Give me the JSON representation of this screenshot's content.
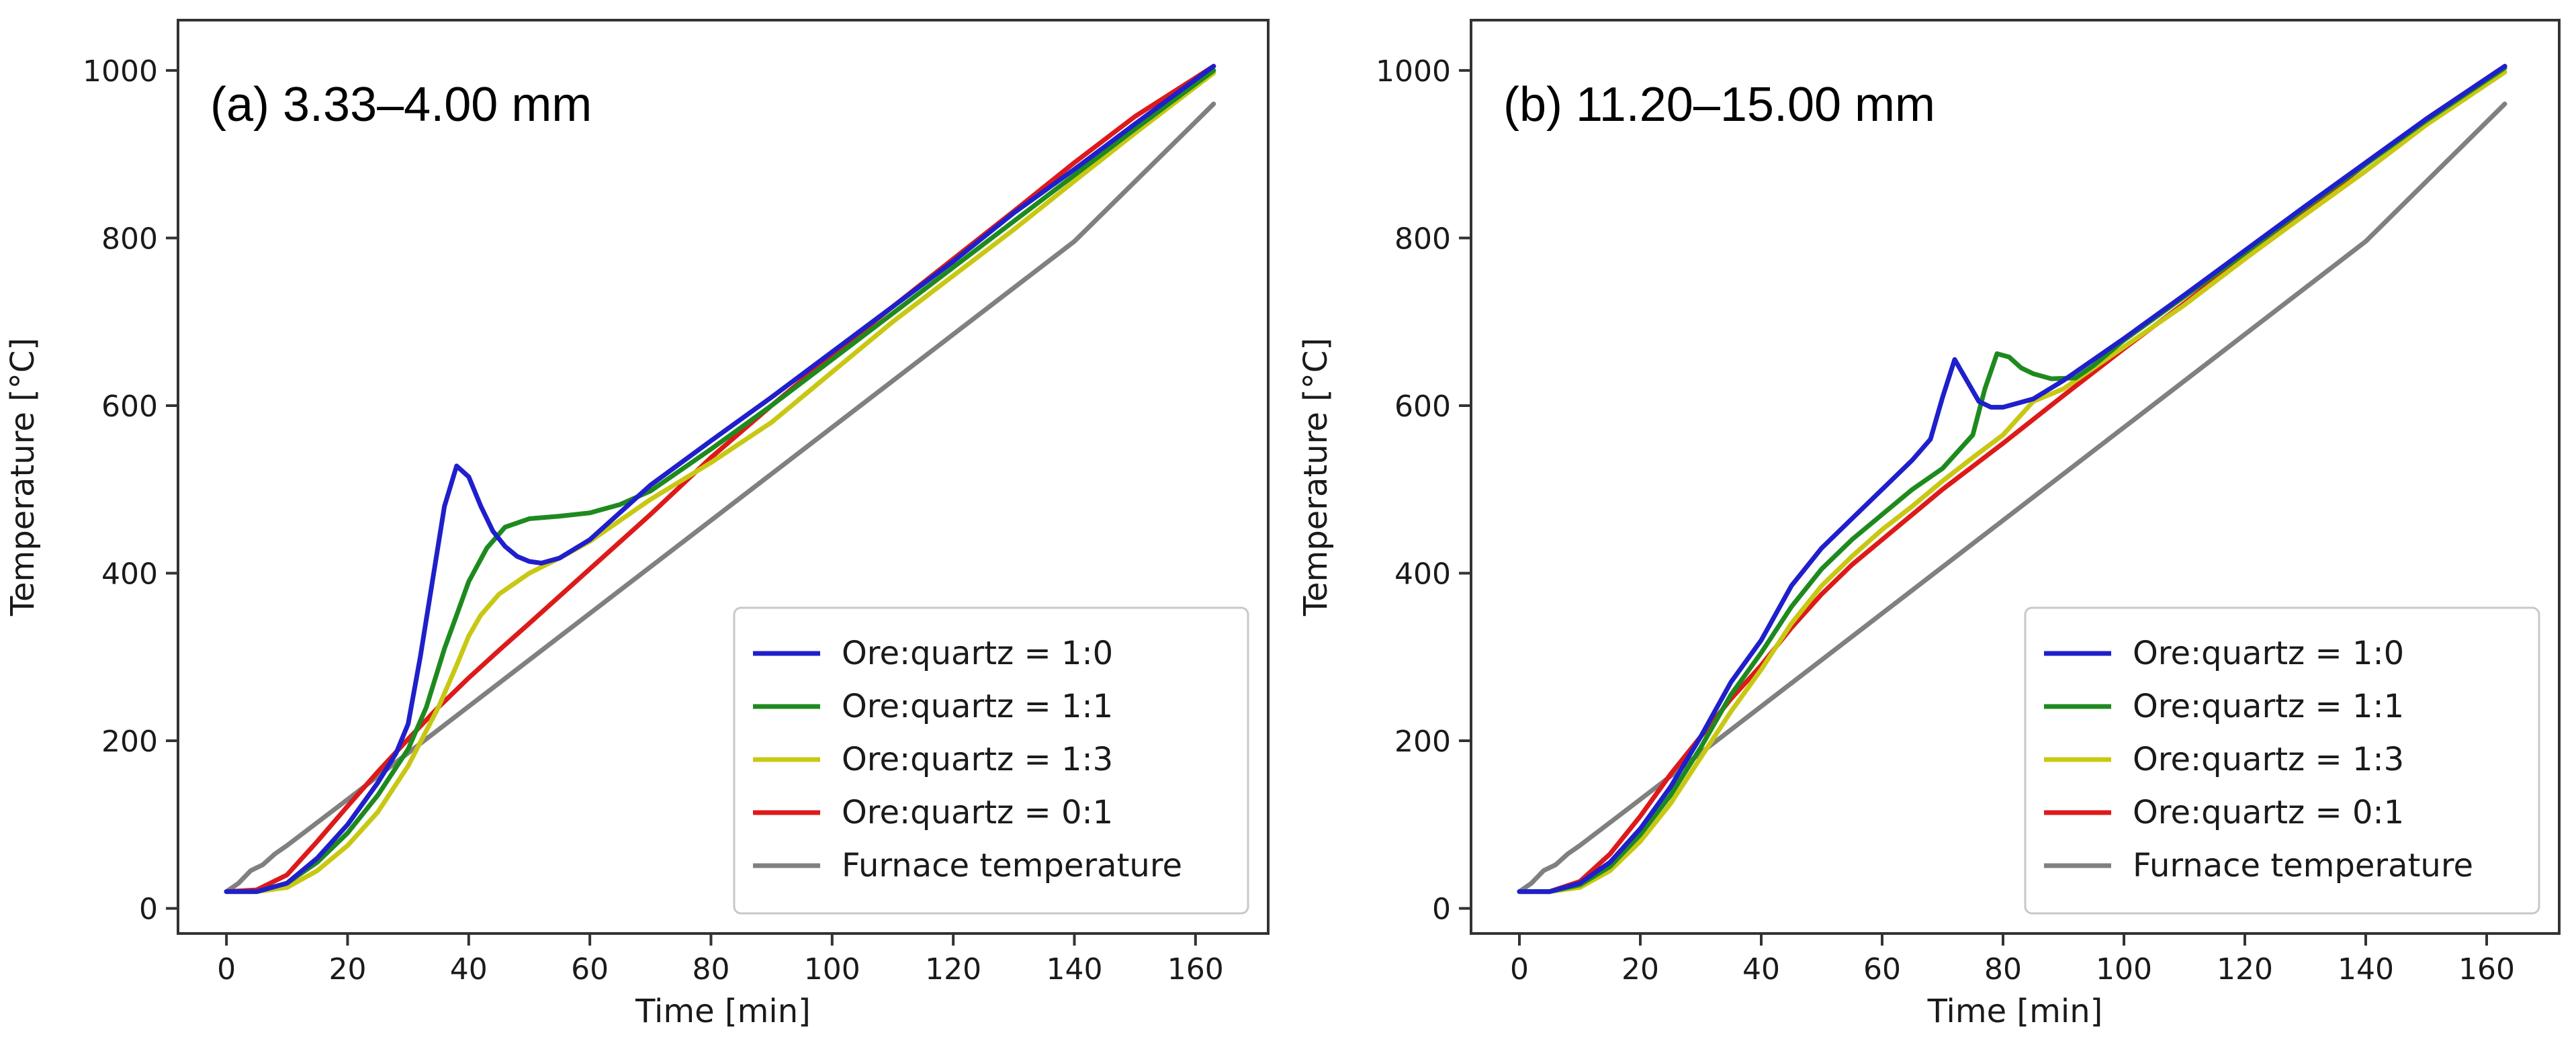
{
  "chart_data": [
    {
      "type": "line",
      "title": "(a) 3.33–4.00 mm",
      "xlabel": "Time [min]",
      "ylabel": "Temperature [°C]",
      "xlim": [
        -8,
        172
      ],
      "ylim": [
        -30,
        1060
      ],
      "xticks": [
        0,
        20,
        40,
        60,
        80,
        100,
        120,
        140,
        160
      ],
      "yticks": [
        0,
        200,
        400,
        600,
        800,
        1000
      ],
      "legend_position": "bottom-right",
      "series": [
        {
          "name": "Ore:quartz = 1:0",
          "color": "#1f1fcc",
          "x": [
            0,
            5,
            10,
            15,
            20,
            25,
            28,
            30,
            32,
            34,
            36,
            38,
            40,
            42,
            44,
            46,
            48,
            50,
            52,
            55,
            60,
            70,
            80,
            90,
            100,
            110,
            120,
            130,
            140,
            150,
            163
          ],
          "y": [
            20,
            20,
            30,
            60,
            100,
            150,
            185,
            220,
            300,
            390,
            480,
            528,
            515,
            480,
            450,
            432,
            420,
            414,
            412,
            418,
            440,
            505,
            558,
            610,
            664,
            718,
            772,
            830,
            882,
            936,
            1005
          ]
        },
        {
          "name": "Ore:quartz = 1:1",
          "color": "#1e8a1e",
          "x": [
            0,
            5,
            10,
            15,
            20,
            25,
            30,
            33,
            36,
            38,
            40,
            43,
            46,
            50,
            55,
            60,
            65,
            70,
            80,
            90,
            100,
            110,
            120,
            130,
            140,
            150,
            163
          ],
          "y": [
            20,
            20,
            30,
            55,
            90,
            135,
            190,
            240,
            310,
            350,
            390,
            430,
            455,
            465,
            468,
            472,
            482,
            498,
            548,
            600,
            655,
            710,
            765,
            820,
            875,
            930,
            1000
          ]
        },
        {
          "name": "Ore:quartz = 1:3",
          "color": "#c8c814",
          "x": [
            0,
            5,
            10,
            15,
            20,
            25,
            30,
            35,
            38,
            40,
            42,
            45,
            50,
            55,
            60,
            70,
            80,
            90,
            100,
            110,
            120,
            130,
            140,
            150,
            163
          ],
          "y": [
            20,
            20,
            25,
            45,
            75,
            115,
            170,
            240,
            290,
            325,
            350,
            375,
            400,
            418,
            438,
            488,
            532,
            580,
            640,
            700,
            755,
            810,
            868,
            925,
            997
          ]
        },
        {
          "name": "Ore:quartz = 0:1",
          "color": "#dd1a1a",
          "x": [
            0,
            5,
            10,
            15,
            20,
            25,
            30,
            35,
            40,
            45,
            50,
            60,
            70,
            80,
            90,
            100,
            110,
            120,
            130,
            140,
            150,
            163
          ],
          "y": [
            20,
            22,
            40,
            80,
            122,
            163,
            202,
            240,
            275,
            308,
            340,
            405,
            470,
            538,
            600,
            660,
            718,
            775,
            832,
            890,
            945,
            1005
          ]
        },
        {
          "name": "Furnace temperature",
          "color": "#808080",
          "x": [
            0,
            2,
            4,
            6,
            8,
            10,
            20,
            40,
            60,
            80,
            100,
            120,
            140,
            163
          ],
          "y": [
            20,
            30,
            45,
            52,
            65,
            75,
            130,
            241,
            352,
            463,
            574,
            685,
            796,
            960
          ]
        }
      ]
    },
    {
      "type": "line",
      "title": "(b) 11.20–15.00 mm",
      "xlabel": "Time [min]",
      "ylabel": "Temperature [°C]",
      "xlim": [
        -8,
        172
      ],
      "ylim": [
        -30,
        1060
      ],
      "xticks": [
        0,
        20,
        40,
        60,
        80,
        100,
        120,
        140,
        160
      ],
      "yticks": [
        0,
        200,
        400,
        600,
        800,
        1000
      ],
      "legend_position": "bottom-right",
      "series": [
        {
          "name": "Ore:quartz = 1:0",
          "color": "#1f1fcc",
          "x": [
            0,
            5,
            10,
            15,
            20,
            25,
            30,
            35,
            40,
            45,
            50,
            55,
            60,
            65,
            68,
            70,
            72,
            74,
            76,
            78,
            80,
            85,
            90,
            100,
            110,
            120,
            130,
            140,
            150,
            163
          ],
          "y": [
            20,
            20,
            30,
            55,
            95,
            145,
            205,
            270,
            320,
            385,
            430,
            465,
            500,
            535,
            560,
            610,
            655,
            630,
            605,
            598,
            598,
            608,
            630,
            680,
            732,
            785,
            838,
            890,
            942,
            1005
          ]
        },
        {
          "name": "Ore:quartz = 1:1",
          "color": "#1e8a1e",
          "x": [
            0,
            5,
            10,
            15,
            20,
            25,
            30,
            35,
            40,
            45,
            50,
            55,
            60,
            65,
            70,
            75,
            77,
            79,
            81,
            83,
            85,
            88,
            92,
            95,
            100,
            110,
            120,
            130,
            140,
            150,
            163
          ],
          "y": [
            20,
            20,
            28,
            50,
            88,
            135,
            192,
            255,
            305,
            360,
            405,
            440,
            470,
            500,
            525,
            565,
            620,
            662,
            658,
            645,
            638,
            632,
            633,
            648,
            678,
            730,
            782,
            836,
            888,
            940,
            1003
          ]
        },
        {
          "name": "Ore:quartz = 1:3",
          "color": "#c8c814",
          "x": [
            0,
            5,
            10,
            15,
            20,
            25,
            30,
            35,
            40,
            45,
            50,
            55,
            60,
            65,
            70,
            75,
            80,
            85,
            90,
            95,
            100,
            110,
            120,
            130,
            140,
            150,
            163
          ],
          "y": [
            20,
            20,
            25,
            45,
            80,
            125,
            180,
            235,
            285,
            340,
            385,
            420,
            452,
            480,
            510,
            538,
            565,
            605,
            620,
            645,
            670,
            720,
            775,
            828,
            880,
            935,
            998
          ]
        },
        {
          "name": "Ore:quartz = 0:1",
          "color": "#dd1a1a",
          "x": [
            0,
            5,
            10,
            15,
            20,
            25,
            30,
            35,
            40,
            45,
            50,
            55,
            60,
            70,
            80,
            90,
            100,
            110,
            120,
            130,
            140,
            150,
            163
          ],
          "y": [
            20,
            20,
            32,
            65,
            110,
            160,
            205,
            250,
            290,
            335,
            375,
            410,
            440,
            500,
            555,
            612,
            668,
            722,
            778,
            832,
            888,
            942,
            1005
          ]
        },
        {
          "name": "Furnace temperature",
          "color": "#808080",
          "x": [
            0,
            2,
            4,
            6,
            8,
            10,
            20,
            40,
            60,
            80,
            100,
            120,
            140,
            163
          ],
          "y": [
            20,
            30,
            45,
            52,
            65,
            75,
            130,
            241,
            352,
            463,
            574,
            685,
            796,
            960
          ]
        }
      ]
    }
  ]
}
